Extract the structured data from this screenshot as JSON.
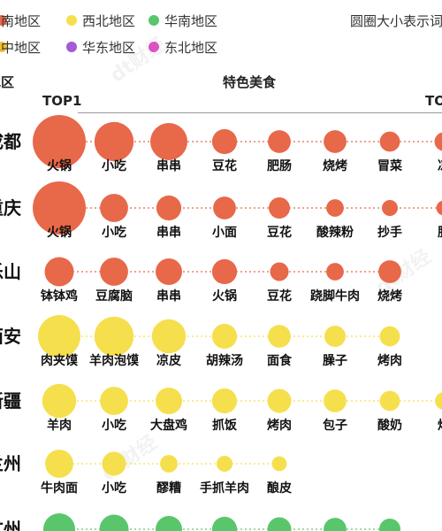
{
  "legend": [
    {
      "label": "西南地区",
      "color": "#E8684A"
    },
    {
      "label": "西北地区",
      "color": "#F5DF4D"
    },
    {
      "label": "华南地区",
      "color": "#5AC66B"
    },
    {
      "label": "华中地区",
      "color": "#F2C230"
    },
    {
      "label": "华东地区",
      "color": "#A35BD6"
    },
    {
      "label": "东北地区",
      "color": "#E056C8"
    }
  ],
  "size_note": "圆圈大小表示词",
  "header": {
    "region": "地区",
    "foods": "特色美食",
    "top1": "TOP1",
    "top_last": "TO"
  },
  "watermark": "dt财经",
  "chart_data": {
    "type": "scatter",
    "x_label": "特色美食",
    "rows": [
      {
        "city": "成都",
        "region": "西南地区",
        "color": "#E8684A",
        "foods": [
          {
            "name": "火锅",
            "size": 1.0
          },
          {
            "name": "小吃",
            "size": 0.74
          },
          {
            "name": "串串",
            "size": 0.7
          },
          {
            "name": "豆花",
            "size": 0.47
          },
          {
            "name": "肥肠",
            "size": 0.43
          },
          {
            "name": "烧烤",
            "size": 0.43
          },
          {
            "name": "冒菜",
            "size": 0.38
          },
          {
            "name": "凉",
            "size": 0.35
          }
        ]
      },
      {
        "city": "重庆",
        "region": "西南地区",
        "color": "#E8684A",
        "foods": [
          {
            "name": "火锅",
            "size": 1.0
          },
          {
            "name": "小吃",
            "size": 0.53
          },
          {
            "name": "串串",
            "size": 0.47
          },
          {
            "name": "小面",
            "size": 0.43
          },
          {
            "name": "豆花",
            "size": 0.4
          },
          {
            "name": "酸辣粉",
            "size": 0.33
          },
          {
            "name": "抄手",
            "size": 0.3
          },
          {
            "name": "肥",
            "size": 0.28
          }
        ]
      },
      {
        "city": "乐山",
        "region": "西南地区",
        "color": "#E8684A",
        "foods": [
          {
            "name": "钵钵鸡",
            "size": 0.55
          },
          {
            "name": "豆腐脑",
            "size": 0.53
          },
          {
            "name": "串串",
            "size": 0.5
          },
          {
            "name": "火锅",
            "size": 0.47
          },
          {
            "name": "豆花",
            "size": 0.35
          },
          {
            "name": "跷脚牛肉",
            "size": 0.33
          },
          {
            "name": "烧烤",
            "size": 0.43
          }
        ]
      },
      {
        "city": "西安",
        "region": "西北地区",
        "color": "#F5DF4D",
        "foods": [
          {
            "name": "肉夹馍",
            "size": 0.8
          },
          {
            "name": "羊肉泡馍",
            "size": 0.74
          },
          {
            "name": "凉皮",
            "size": 0.64
          },
          {
            "name": "胡辣汤",
            "size": 0.47
          },
          {
            "name": "面食",
            "size": 0.43
          },
          {
            "name": "臊子",
            "size": 0.4
          },
          {
            "name": "烤肉",
            "size": 0.38
          }
        ]
      },
      {
        "city": "新疆",
        "region": "西北地区",
        "color": "#F5DF4D",
        "foods": [
          {
            "name": "羊肉",
            "size": 0.64
          },
          {
            "name": "小吃",
            "size": 0.53
          },
          {
            "name": "大盘鸡",
            "size": 0.5
          },
          {
            "name": "抓饭",
            "size": 0.47
          },
          {
            "name": "烤肉",
            "size": 0.45
          },
          {
            "name": "包子",
            "size": 0.43
          },
          {
            "name": "酸奶",
            "size": 0.38
          },
          {
            "name": "炒",
            "size": 0.33
          }
        ]
      },
      {
        "city": "兰州",
        "region": "西北地区",
        "color": "#F5DF4D",
        "foods": [
          {
            "name": "牛肉面",
            "size": 0.53
          },
          {
            "name": "小吃",
            "size": 0.45
          },
          {
            "name": "醪糟",
            "size": 0.33
          },
          {
            "name": "手抓羊肉",
            "size": 0.3
          },
          {
            "name": "酿皮",
            "size": 0.28
          }
        ]
      },
      {
        "city": "广州",
        "region": "华南地区",
        "color": "#5AC66B",
        "foods": [
          {
            "name": "",
            "size": 0.6
          },
          {
            "name": "",
            "size": 0.55
          },
          {
            "name": "",
            "size": 0.5
          },
          {
            "name": "",
            "size": 0.47
          },
          {
            "name": "",
            "size": 0.45
          },
          {
            "name": "",
            "size": 0.43
          },
          {
            "name": "",
            "size": 0.4
          }
        ]
      }
    ]
  }
}
